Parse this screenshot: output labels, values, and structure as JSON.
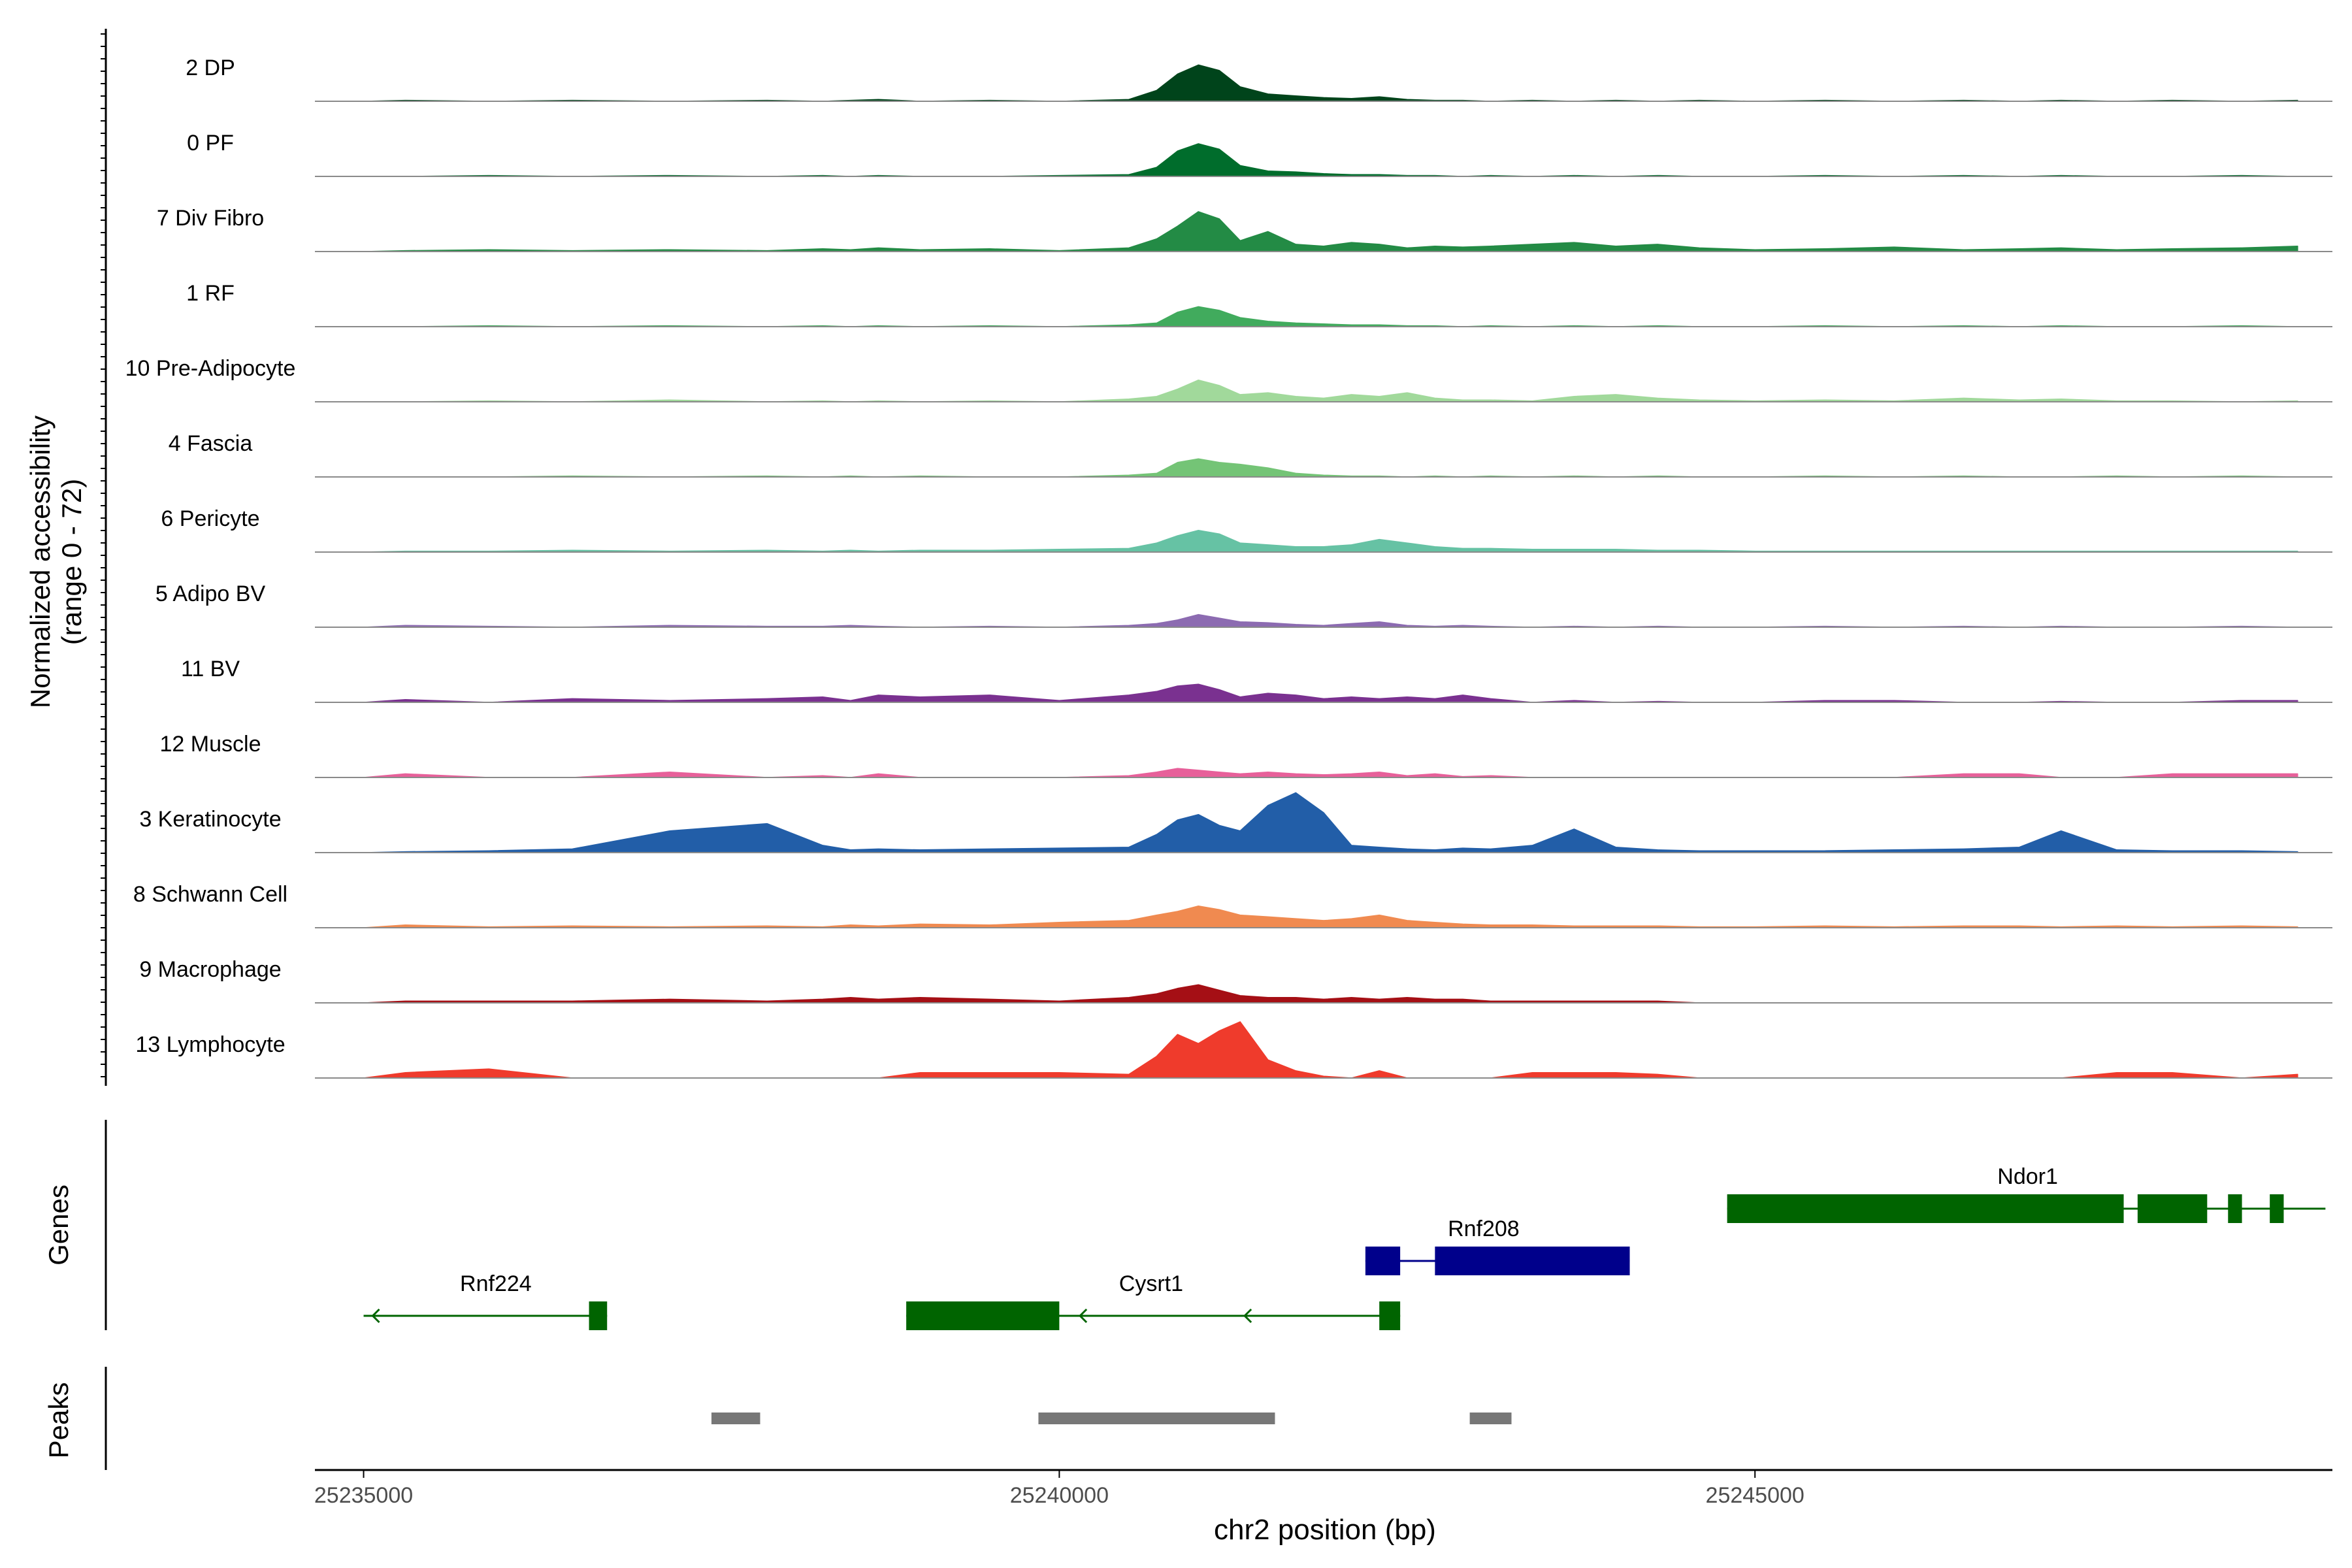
{
  "chart_data": [
    {
      "type": "area",
      "title": "",
      "ylabel": "Normalized accessibility",
      "ylabel_range": "(range 0 - 72)",
      "ylim": [
        0,
        72
      ],
      "xlim": [
        25234650,
        25249150
      ],
      "x": [
        25235000,
        25235300,
        25235900,
        25236500,
        25237200,
        25237900,
        25238300,
        25238500,
        25238700,
        25239000,
        25239500,
        25240000,
        25240500,
        25240700,
        25240850,
        25241000,
        25241150,
        25241300,
        25241500,
        25241700,
        25241900,
        25242100,
        25242300,
        25242500,
        25242700,
        25242900,
        25243100,
        25243400,
        25243700,
        25244000,
        25244300,
        25244600,
        25245000,
        25245500,
        25246000,
        25246500,
        25246900,
        25247200,
        25247600,
        25248000,
        25248500,
        25248900
      ],
      "series": [
        {
          "name": "2 DP",
          "color": "#00441b",
          "values": [
            0,
            1,
            0,
            1,
            0,
            1,
            0,
            1,
            2,
            0,
            1,
            0,
            2,
            12,
            30,
            40,
            34,
            16,
            8,
            6,
            4,
            3,
            5,
            2,
            1,
            1,
            0,
            1,
            0,
            1,
            0,
            1,
            0,
            1,
            0,
            1,
            0,
            1,
            0,
            1,
            0,
            1
          ]
        },
        {
          "name": "0 PF",
          "color": "#006d2c",
          "values": [
            0,
            0,
            1,
            0,
            1,
            0,
            1,
            0,
            1,
            0,
            0,
            1,
            2,
            10,
            28,
            36,
            30,
            12,
            6,
            5,
            3,
            2,
            2,
            1,
            1,
            0,
            1,
            0,
            1,
            0,
            1,
            0,
            0,
            1,
            0,
            1,
            0,
            1,
            0,
            0,
            1,
            0
          ]
        },
        {
          "name": "7 Div Fibro",
          "color": "#238b45",
          "values": [
            0,
            1,
            2,
            1,
            2,
            1,
            3,
            2,
            4,
            2,
            3,
            1,
            4,
            14,
            28,
            44,
            36,
            12,
            22,
            8,
            6,
            10,
            8,
            4,
            6,
            5,
            6,
            8,
            10,
            6,
            8,
            4,
            2,
            3,
            5,
            2,
            3,
            4,
            2,
            3,
            4,
            6
          ]
        },
        {
          "name": "1 RF",
          "color": "#41ab5d",
          "values": [
            0,
            0,
            1,
            0,
            1,
            0,
            1,
            0,
            1,
            0,
            1,
            0,
            2,
            4,
            16,
            22,
            18,
            10,
            6,
            4,
            3,
            2,
            2,
            1,
            1,
            0,
            1,
            0,
            1,
            0,
            1,
            0,
            0,
            1,
            0,
            1,
            0,
            1,
            0,
            0,
            1,
            0
          ]
        },
        {
          "name": "10 Pre-Adipocyte",
          "color": "#a1d99b",
          "values": [
            0,
            0,
            1,
            0,
            2,
            0,
            1,
            0,
            1,
            0,
            1,
            0,
            3,
            6,
            14,
            24,
            18,
            8,
            10,
            6,
            4,
            8,
            6,
            10,
            4,
            2,
            2,
            1,
            6,
            8,
            4,
            2,
            1,
            2,
            1,
            4,
            2,
            3,
            1,
            1,
            0,
            1
          ]
        },
        {
          "name": "4 Fascia",
          "color": "#74c476",
          "values": [
            0,
            0,
            0,
            1,
            0,
            1,
            0,
            1,
            0,
            1,
            0,
            0,
            2,
            4,
            16,
            20,
            16,
            14,
            10,
            4,
            2,
            1,
            1,
            0,
            1,
            0,
            1,
            0,
            1,
            0,
            1,
            0,
            0,
            1,
            0,
            1,
            0,
            0,
            1,
            0,
            1,
            0
          ]
        },
        {
          "name": "6 Pericyte",
          "color": "#66c2a4",
          "values": [
            0,
            1,
            1,
            2,
            1,
            2,
            1,
            2,
            1,
            2,
            2,
            3,
            4,
            10,
            18,
            24,
            20,
            10,
            8,
            6,
            6,
            8,
            14,
            10,
            6,
            4,
            4,
            3,
            3,
            3,
            2,
            2,
            1,
            1,
            1,
            1,
            1,
            1,
            1,
            1,
            1,
            1
          ]
        },
        {
          "name": "5 Adipo BV",
          "color": "#8c6bb1",
          "values": [
            0,
            2,
            1,
            0,
            2,
            1,
            1,
            2,
            1,
            0,
            1,
            0,
            2,
            4,
            8,
            14,
            10,
            6,
            5,
            3,
            2,
            4,
            6,
            2,
            1,
            2,
            1,
            0,
            1,
            0,
            1,
            0,
            0,
            1,
            0,
            1,
            0,
            1,
            0,
            0,
            1,
            0
          ]
        },
        {
          "name": "11 BV",
          "color": "#7a3190",
          "values": [
            0,
            3,
            0,
            4,
            2,
            4,
            6,
            2,
            8,
            6,
            8,
            2,
            8,
            12,
            18,
            20,
            14,
            6,
            10,
            8,
            4,
            6,
            4,
            6,
            4,
            8,
            4,
            0,
            2,
            0,
            1,
            0,
            0,
            2,
            2,
            0,
            0,
            1,
            0,
            0,
            2,
            2
          ]
        },
        {
          "name": "12 Muscle",
          "color": "#e7609a",
          "values": [
            0,
            4,
            0,
            0,
            6,
            0,
            2,
            0,
            4,
            0,
            0,
            0,
            2,
            6,
            10,
            8,
            6,
            4,
            6,
            4,
            3,
            4,
            6,
            2,
            4,
            1,
            2,
            0,
            0,
            0,
            0,
            0,
            0,
            0,
            0,
            4,
            4,
            0,
            0,
            4,
            4,
            4
          ]
        },
        {
          "name": "3 Keratinocyte",
          "color": "#225ea8",
          "values": [
            0,
            1,
            2,
            4,
            24,
            32,
            8,
            3,
            4,
            3,
            4,
            5,
            6,
            20,
            36,
            42,
            30,
            24,
            52,
            66,
            44,
            8,
            6,
            4,
            3,
            5,
            4,
            8,
            26,
            6,
            3,
            2,
            2,
            2,
            3,
            4,
            6,
            24,
            3,
            2,
            2,
            1
          ]
        },
        {
          "name": "8 Schwann Cell",
          "color": "#f08a50",
          "values": [
            0,
            3,
            1,
            2,
            1,
            2,
            1,
            3,
            2,
            4,
            3,
            6,
            8,
            14,
            18,
            24,
            20,
            14,
            12,
            10,
            8,
            10,
            14,
            8,
            6,
            4,
            3,
            3,
            2,
            2,
            2,
            1,
            1,
            2,
            1,
            2,
            2,
            1,
            2,
            1,
            2,
            1
          ]
        },
        {
          "name": "9 Macrophage",
          "color": "#a50f15",
          "values": [
            0,
            2,
            2,
            2,
            4,
            2,
            4,
            6,
            4,
            6,
            4,
            2,
            6,
            10,
            16,
            20,
            14,
            8,
            6,
            6,
            4,
            6,
            4,
            6,
            4,
            4,
            2,
            2,
            2,
            2,
            2,
            0,
            0,
            0,
            0,
            0,
            0,
            0,
            0,
            0,
            0,
            0
          ]
        },
        {
          "name": "13 Lymphocyte",
          "color": "#ef3b2c",
          "values": [
            0,
            6,
            10,
            0,
            0,
            0,
            0,
            0,
            0,
            6,
            6,
            6,
            4,
            24,
            48,
            38,
            52,
            62,
            20,
            8,
            2,
            0,
            8,
            0,
            0,
            0,
            0,
            6,
            6,
            6,
            4,
            0,
            0,
            0,
            0,
            0,
            0,
            0,
            6,
            6,
            0,
            4
          ]
        }
      ]
    },
    {
      "type": "gene_track",
      "ylabel": "Genes",
      "genes": [
        {
          "name": "Rnf224",
          "strand": "-",
          "start": 25235000,
          "end": 25236750,
          "exons": [
            [
              25236620,
              25236750
            ]
          ]
        },
        {
          "name": "Cysrt1",
          "strand": "-",
          "start": 25238900,
          "end": 25242450,
          "exons": [
            [
              25238900,
              25240000
            ],
            [
              25242300,
              25242450
            ]
          ]
        },
        {
          "name": "Rnf208",
          "strand": "+",
          "start": 25242200,
          "end": 25244100,
          "exons": [
            [
              25242200,
              25242450
            ],
            [
              25242700,
              25244100
            ]
          ]
        },
        {
          "name": "Ndor1",
          "strand": "-",
          "start": 25244800,
          "end": 25249100,
          "exons": [
            [
              25244800,
              25247650
            ],
            [
              25247750,
              25248250
            ],
            [
              25248400,
              25248500
            ],
            [
              25248700,
              25248800
            ]
          ]
        }
      ]
    },
    {
      "type": "peak_track",
      "ylabel": "Peaks",
      "peaks": [
        [
          25237500,
          25237850
        ],
        [
          25239850,
          25241550
        ],
        [
          25242950,
          25243250
        ]
      ]
    }
  ],
  "xaxis": {
    "title": "chr2 position (bp)",
    "ticks": [
      {
        "value": 25235000,
        "label": "25235000"
      },
      {
        "value": 25240000,
        "label": "25240000"
      },
      {
        "value": 25245000,
        "label": "25245000"
      }
    ]
  },
  "colors": {
    "gene_minus": "#006400",
    "gene_plus": "#00008b",
    "peak": "#777777",
    "baseline": "#8a8a8a",
    "axis": "#000000",
    "text": "#000000",
    "tick_text": "#4d4d4d"
  }
}
